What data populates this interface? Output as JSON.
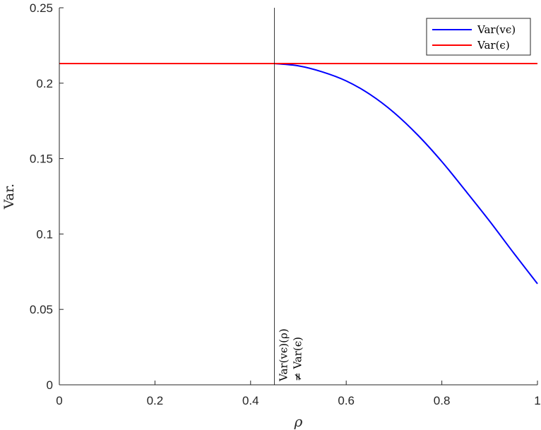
{
  "chart_data": {
    "type": "line",
    "xlabel": "ρ",
    "ylabel": "Var.",
    "xlim": [
      0,
      1
    ],
    "ylim": [
      0,
      0.25
    ],
    "xticks": [
      0,
      0.2,
      0.4,
      0.6,
      0.8,
      1
    ],
    "yticks": [
      0,
      0.05,
      0.1,
      0.15,
      0.2,
      0.25
    ],
    "xtick_labels": [
      "0",
      "0.2",
      "0.4",
      "0.6",
      "0.8",
      "1"
    ],
    "ytick_labels": [
      "0",
      "0.05",
      "0.1",
      "0.15",
      "0.2",
      "0.25"
    ],
    "grid": false,
    "legend_position": "top-right",
    "series": [
      {
        "name": "Var(vϵ)",
        "color": "#0000ff",
        "x": [
          0.45,
          0.5,
          0.55,
          0.6,
          0.65,
          0.7,
          0.75,
          0.8,
          0.85,
          0.9,
          0.95,
          1.0
        ],
        "y": [
          0.213,
          0.2115,
          0.2075,
          0.2015,
          0.1925,
          0.1805,
          0.1655,
          0.148,
          0.1285,
          0.1085,
          0.0875,
          0.067
        ]
      },
      {
        "name": "Var(ϵ)",
        "color": "#ff0000",
        "x": [
          0,
          1
        ],
        "y": [
          0.213,
          0.213
        ]
      }
    ],
    "annotations": [
      {
        "type": "vline",
        "x": 0.45,
        "color": "#000000",
        "text_lines": [
          "Var(vϵ)(ρ)",
          "≠ Var(ϵ)"
        ]
      }
    ]
  }
}
